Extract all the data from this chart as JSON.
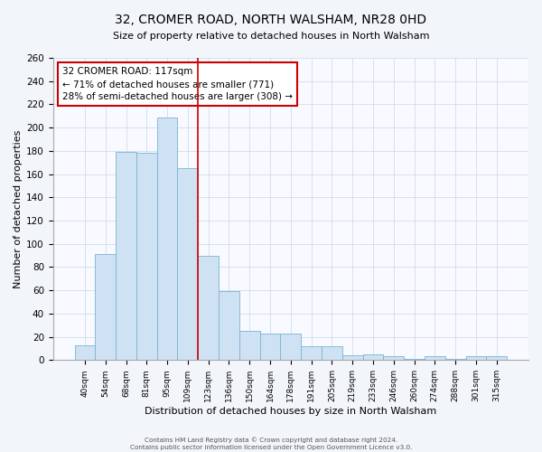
{
  "title": "32, CROMER ROAD, NORTH WALSHAM, NR28 0HD",
  "subtitle": "Size of property relative to detached houses in North Walsham",
  "xlabel": "Distribution of detached houses by size in North Walsham",
  "ylabel": "Number of detached properties",
  "categories": [
    "40sqm",
    "54sqm",
    "68sqm",
    "81sqm",
    "95sqm",
    "109sqm",
    "123sqm",
    "136sqm",
    "150sqm",
    "164sqm",
    "178sqm",
    "191sqm",
    "205sqm",
    "219sqm",
    "233sqm",
    "246sqm",
    "260sqm",
    "274sqm",
    "288sqm",
    "301sqm",
    "315sqm"
  ],
  "values": [
    13,
    91,
    179,
    178,
    209,
    165,
    90,
    59,
    25,
    23,
    23,
    12,
    12,
    4,
    5,
    3,
    1,
    3,
    1,
    3,
    3
  ],
  "bar_color_fill": "#cfe2f3",
  "bar_color_edge": "#7ab3d4",
  "vline_color": "#cc0000",
  "vline_x_index": 6,
  "annotation_title": "32 CROMER ROAD: 117sqm",
  "annotation_line1": "← 71% of detached houses are smaller (771)",
  "annotation_line2": "28% of semi-detached houses are larger (308) →",
  "annotation_box_color": "#cc0000",
  "ylim": [
    0,
    260
  ],
  "yticks": [
    0,
    20,
    40,
    60,
    80,
    100,
    120,
    140,
    160,
    180,
    200,
    220,
    240,
    260
  ],
  "footer1": "Contains HM Land Registry data © Crown copyright and database right 2024.",
  "footer2": "Contains public sector information licensed under the Open Government Licence v3.0.",
  "bg_color": "#f2f5fa",
  "plot_bg_color": "#f8faff",
  "grid_color": "#c8d8ea"
}
